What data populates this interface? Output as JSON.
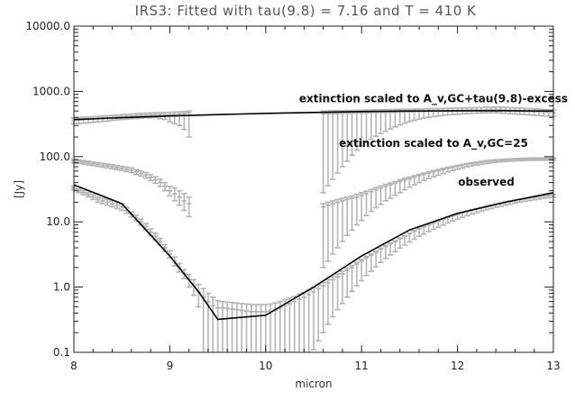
{
  "chart_data": {
    "type": "line",
    "title": "IRS3: Fitted with tau(9.8) = 7.16 and T = 410 K",
    "xlabel": "micron",
    "ylabel": "[Jy]",
    "xlim": [
      8,
      13
    ],
    "ylim": [
      0.1,
      10000
    ],
    "yscale": "log",
    "grid": false,
    "xticks": [
      8,
      9,
      10,
      11,
      12,
      13
    ],
    "xtick_labels": [
      "8",
      "9",
      "10",
      "11",
      "12",
      "13"
    ],
    "yticks": [
      0.1,
      1,
      10,
      100,
      1000,
      10000
    ],
    "ytick_labels": [
      "0.1",
      "1.0",
      "10.0",
      "100.0",
      "1000.0",
      "10000.0"
    ],
    "annotations": [
      {
        "text": "extinction scaled to A_v,GC+tau(9.8)-excess",
        "x": 11.75,
        "y": 680
      },
      {
        "text": "extinction scaled to A_v,GC=25",
        "x": 11.75,
        "y": 140
      },
      {
        "text": "observed",
        "x": 12.3,
        "y": 36
      }
    ],
    "fit_line": {
      "x": [
        8.0,
        8.5,
        9.0,
        9.3,
        9.5,
        10.0,
        10.5,
        11.0,
        11.5,
        12.0,
        12.5,
        13.0
      ],
      "y": [
        37,
        19,
        3.0,
        0.85,
        0.32,
        0.37,
        1.0,
        3.0,
        7.5,
        13.5,
        20,
        28
      ]
    },
    "upper_line": {
      "x": [
        8.0,
        8.5,
        9.0,
        9.5,
        10.0,
        10.5,
        11.0,
        11.5,
        12.0,
        12.5,
        13.0
      ],
      "y": [
        370,
        395,
        420,
        440,
        460,
        475,
        490,
        500,
        505,
        505,
        500
      ]
    },
    "series": [
      {
        "name": "extinction scaled to A_v,GC+tau(9.8)-excess",
        "color": "#b4b4b4",
        "x": [
          8.0,
          8.05,
          8.1,
          8.15,
          8.2,
          8.25,
          8.3,
          8.35,
          8.4,
          8.45,
          8.5,
          8.55,
          8.6,
          8.65,
          8.7,
          8.75,
          8.8,
          8.85,
          8.9,
          8.95,
          9.0,
          9.05,
          9.1,
          9.15,
          9.2,
          10.6,
          10.65,
          10.7,
          10.75,
          10.8,
          10.85,
          10.9,
          10.95,
          11.0,
          11.05,
          11.1,
          11.15,
          11.2,
          11.25,
          11.3,
          11.35,
          11.4,
          11.45,
          11.5,
          11.55,
          11.6,
          11.65,
          11.7,
          11.75,
          11.8,
          11.85,
          11.9,
          11.95,
          12.0,
          12.05,
          12.1,
          12.15,
          12.2,
          12.25,
          12.3,
          12.35,
          12.4,
          12.45,
          12.5,
          12.55,
          12.6,
          12.65,
          12.7,
          12.75,
          12.8,
          12.85,
          12.9,
          12.95,
          13.0
        ],
        "y": [
          360,
          365,
          370,
          375,
          380,
          385,
          390,
          395,
          400,
          405,
          410,
          415,
          420,
          425,
          430,
          432,
          435,
          438,
          440,
          440,
          440,
          445,
          450,
          460,
          470,
          455,
          456,
          457,
          458,
          460,
          462,
          464,
          466,
          468,
          470,
          472,
          474,
          476,
          478,
          480,
          480,
          482,
          484,
          486,
          488,
          490,
          492,
          494,
          496,
          498,
          500,
          502,
          503,
          505,
          508,
          510,
          512,
          515,
          518,
          520,
          522,
          525,
          525,
          520,
          515,
          510,
          505,
          500,
          495,
          490,
          485,
          480,
          475,
          470
        ],
        "lower": [
          320,
          322,
          325,
          330,
          335,
          340,
          345,
          350,
          360,
          365,
          370,
          375,
          380,
          385,
          390,
          395,
          395,
          395,
          380,
          370,
          340,
          320,
          300,
          260,
          200,
          28,
          36,
          45,
          56,
          70,
          85,
          105,
          125,
          145,
          165,
          185,
          205,
          225,
          245,
          265,
          285,
          305,
          325,
          345,
          360,
          375,
          390,
          400,
          410,
          420,
          428,
          435,
          440,
          445,
          450,
          455,
          460,
          462,
          465,
          468,
          470,
          470,
          465,
          460,
          455,
          450,
          445,
          440,
          435,
          430,
          425,
          420,
          415,
          410
        ],
        "upper": [
          390,
          395,
          400,
          405,
          410,
          415,
          420,
          425,
          430,
          435,
          440,
          445,
          450,
          455,
          460,
          463,
          466,
          470,
          472,
          475,
          478,
          482,
          486,
          490,
          500,
          500,
          502,
          503,
          505,
          507,
          509,
          511,
          513,
          515,
          517,
          519,
          521,
          523,
          525,
          527,
          528,
          530,
          532,
          534,
          536,
          538,
          540,
          542,
          544,
          546,
          548,
          550,
          552,
          554,
          556,
          558,
          560,
          563,
          566,
          570,
          572,
          575,
          575,
          570,
          565,
          560,
          555,
          550,
          545,
          540,
          535,
          530,
          525,
          520
        ]
      },
      {
        "name": "extinction scaled to A_v,GC=25",
        "color": "#b4b4b4",
        "x": [
          8.0,
          8.05,
          8.1,
          8.15,
          8.2,
          8.25,
          8.3,
          8.35,
          8.4,
          8.45,
          8.5,
          8.55,
          8.6,
          8.65,
          8.7,
          8.75,
          8.8,
          8.85,
          8.9,
          8.95,
          9.0,
          9.05,
          9.1,
          9.15,
          9.2,
          10.6,
          10.65,
          10.7,
          10.75,
          10.8,
          10.85,
          10.9,
          10.95,
          11.0,
          11.05,
          11.1,
          11.15,
          11.2,
          11.25,
          11.3,
          11.35,
          11.4,
          11.45,
          11.5,
          11.55,
          11.6,
          11.65,
          11.7,
          11.75,
          11.8,
          11.85,
          11.9,
          11.95,
          12.0,
          12.05,
          12.1,
          12.15,
          12.2,
          12.25,
          12.3,
          12.35,
          12.4,
          12.45,
          12.5,
          12.55,
          12.6,
          12.65,
          12.7,
          12.75,
          12.8,
          12.85,
          12.9,
          12.95,
          13.0
        ],
        "y": [
          85,
          84,
          82,
          80,
          78,
          76,
          74,
          72,
          70,
          68,
          66,
          64,
          62,
          58,
          55,
          52,
          48,
          44,
          40,
          35,
          30,
          27,
          24,
          21,
          19,
          17,
          18,
          19,
          20,
          21,
          22,
          23,
          24,
          25.5,
          27,
          29,
          31,
          33,
          35,
          37,
          39,
          41.5,
          44,
          46,
          48.5,
          51,
          53.5,
          56,
          58.5,
          61,
          63.5,
          66,
          68.5,
          71,
          73.5,
          76,
          78,
          80,
          82,
          84,
          85.5,
          87,
          88,
          89,
          90,
          91,
          91.5,
          92,
          92.5,
          93,
          93,
          93,
          93,
          93
        ],
        "lower": [
          80,
          79,
          77,
          75,
          73,
          71,
          69,
          67,
          65,
          63,
          61,
          59,
          57,
          53,
          50,
          47,
          43,
          39,
          35,
          30,
          25,
          21,
          18,
          15,
          12,
          2.0,
          2.5,
          3.2,
          4.0,
          5.0,
          6.2,
          7.5,
          9.0,
          10.5,
          12.5,
          14.5,
          16.5,
          18.5,
          21,
          23,
          25.5,
          28,
          31,
          34,
          37,
          40,
          43,
          46,
          49,
          52,
          55,
          58,
          61,
          64,
          67,
          70,
          72,
          74,
          76,
          78,
          80,
          82,
          83,
          84,
          85,
          86,
          86.5,
          87,
          87.5,
          88,
          88,
          88,
          88,
          88
        ],
        "upper": [
          90,
          89,
          87,
          85,
          83,
          81,
          79,
          77,
          75,
          73,
          71,
          69,
          67,
          63,
          60,
          57,
          53,
          49,
          45,
          40,
          35,
          33,
          30,
          27,
          24,
          19,
          20,
          21,
          22,
          23,
          24,
          25,
          26.5,
          28,
          29.5,
          31.5,
          33.5,
          35.5,
          37.5,
          39.5,
          41.5,
          44,
          46.5,
          48.5,
          51,
          53.5,
          56,
          58.5,
          61,
          63.5,
          66,
          68.5,
          71,
          73.5,
          76,
          78.5,
          80.5,
          82.5,
          84.5,
          86.5,
          88,
          89.5,
          90.5,
          91.5,
          92.5,
          93.5,
          94,
          94.5,
          95,
          95.5,
          95.5,
          95.5,
          95.5,
          95.5
        ]
      },
      {
        "name": "observed",
        "color": "#b4b4b4",
        "x": [
          8.0,
          8.05,
          8.1,
          8.15,
          8.2,
          8.25,
          8.3,
          8.35,
          8.4,
          8.45,
          8.5,
          8.55,
          8.6,
          8.65,
          8.7,
          8.75,
          8.8,
          8.85,
          8.9,
          8.95,
          9.0,
          9.05,
          9.1,
          9.15,
          9.2,
          9.25,
          9.3,
          9.35,
          9.4,
          9.45,
          9.5,
          9.55,
          9.6,
          9.65,
          9.7,
          9.75,
          9.8,
          9.85,
          9.9,
          9.95,
          10.0,
          10.05,
          10.1,
          10.15,
          10.2,
          10.25,
          10.3,
          10.35,
          10.4,
          10.45,
          10.5,
          10.55,
          10.6,
          10.65,
          10.7,
          10.75,
          10.8,
          10.85,
          10.9,
          10.95,
          11.0,
          11.05,
          11.1,
          11.15,
          11.2,
          11.25,
          11.3,
          11.35,
          11.4,
          11.45,
          11.5,
          11.55,
          11.6,
          11.65,
          11.7,
          11.75,
          11.8,
          11.85,
          11.9,
          11.95,
          12.0,
          12.05,
          12.1,
          12.15,
          12.2,
          12.25,
          12.3,
          12.35,
          12.4,
          12.45,
          12.5,
          12.55,
          12.6,
          12.65,
          12.7,
          12.75,
          12.8,
          12.85,
          12.9,
          12.95,
          13.0
        ],
        "y": [
          33,
          30,
          28,
          26,
          24,
          22,
          21,
          20,
          19,
          18,
          17,
          15,
          13,
          11.5,
          10,
          8.5,
          7,
          6,
          5,
          4,
          3.2,
          2.5,
          2,
          1.6,
          1.3,
          1.05,
          0.85,
          0.7,
          0.6,
          0.52,
          0.48,
          0.48,
          0.47,
          0.46,
          0.45,
          0.44,
          0.43,
          0.42,
          0.42,
          0.42,
          0.42,
          0.43,
          0.45,
          0.48,
          0.52,
          0.56,
          0.6,
          0.65,
          0.7,
          0.77,
          0.85,
          0.95,
          1.05,
          1.17,
          1.3,
          1.45,
          1.6,
          1.8,
          2.0,
          2.25,
          2.5,
          2.8,
          3.1,
          3.4,
          3.8,
          4.2,
          4.6,
          5.0,
          5.5,
          6.0,
          6.6,
          7.2,
          7.8,
          8.4,
          9.0,
          9.6,
          10.2,
          10.9,
          11.6,
          12.3,
          13.0,
          13.7,
          14.4,
          15.1,
          15.8,
          16.5,
          17.2,
          17.9,
          18.6,
          19.3,
          20.0,
          20.7,
          21.4,
          22.0,
          22.6,
          23.2,
          23.8,
          24.4,
          25.0,
          25.5,
          26.0
        ],
        "lower": [
          31,
          28,
          26,
          24,
          22,
          20,
          19,
          18,
          17,
          16,
          15,
          13.5,
          11.8,
          10.3,
          9,
          7.6,
          6.2,
          5.3,
          4.4,
          3.5,
          2.8,
          2.1,
          1.7,
          1.35,
          1.0,
          0.75,
          0.5,
          0.1,
          0.1,
          0.1,
          0.1,
          0.1,
          0.1,
          0.1,
          0.1,
          0.1,
          0.1,
          0.1,
          0.1,
          0.1,
          0.1,
          0.1,
          0.1,
          0.1,
          0.1,
          0.1,
          0.1,
          0.1,
          0.1,
          0.1,
          0.11,
          0.15,
          0.2,
          0.27,
          0.35,
          0.45,
          0.56,
          0.7,
          0.86,
          1.05,
          1.25,
          1.5,
          1.75,
          2.05,
          2.4,
          2.75,
          3.1,
          3.5,
          3.95,
          4.4,
          4.9,
          5.4,
          6.0,
          6.5,
          7.1,
          7.7,
          8.3,
          8.9,
          9.6,
          10.3,
          11.0,
          11.7,
          12.4,
          13.1,
          13.8,
          14.5,
          15.2,
          15.9,
          16.6,
          17.3,
          18.0,
          18.7,
          19.4,
          20.0,
          20.6,
          21.2,
          21.8,
          22.4,
          23.0,
          23.5,
          24.0
        ],
        "upper": [
          35,
          32,
          30,
          28,
          26,
          24,
          23,
          22,
          21,
          20,
          19,
          16.5,
          14.2,
          12.7,
          11,
          9.4,
          7.8,
          6.7,
          5.6,
          4.5,
          3.6,
          2.9,
          2.3,
          1.85,
          1.55,
          1.3,
          1.1,
          0.95,
          0.8,
          0.7,
          0.62,
          0.6,
          0.59,
          0.58,
          0.57,
          0.56,
          0.55,
          0.54,
          0.54,
          0.54,
          0.54,
          0.55,
          0.57,
          0.6,
          0.64,
          0.68,
          0.72,
          0.78,
          0.83,
          0.9,
          0.98,
          1.08,
          1.18,
          1.3,
          1.44,
          1.6,
          1.75,
          1.95,
          2.15,
          2.4,
          2.65,
          2.95,
          3.25,
          3.55,
          3.95,
          4.35,
          4.75,
          5.15,
          5.65,
          6.15,
          6.75,
          7.35,
          7.95,
          8.55,
          9.15,
          9.75,
          10.35,
          11.05,
          11.75,
          12.45,
          13.15,
          13.85,
          14.55,
          15.25,
          15.95,
          16.65,
          17.35,
          18.05,
          18.75,
          19.45,
          20.15,
          20.85,
          21.55,
          22.15,
          22.75,
          23.35,
          23.95,
          24.55,
          25.15,
          25.65,
          26.15
        ]
      }
    ]
  }
}
